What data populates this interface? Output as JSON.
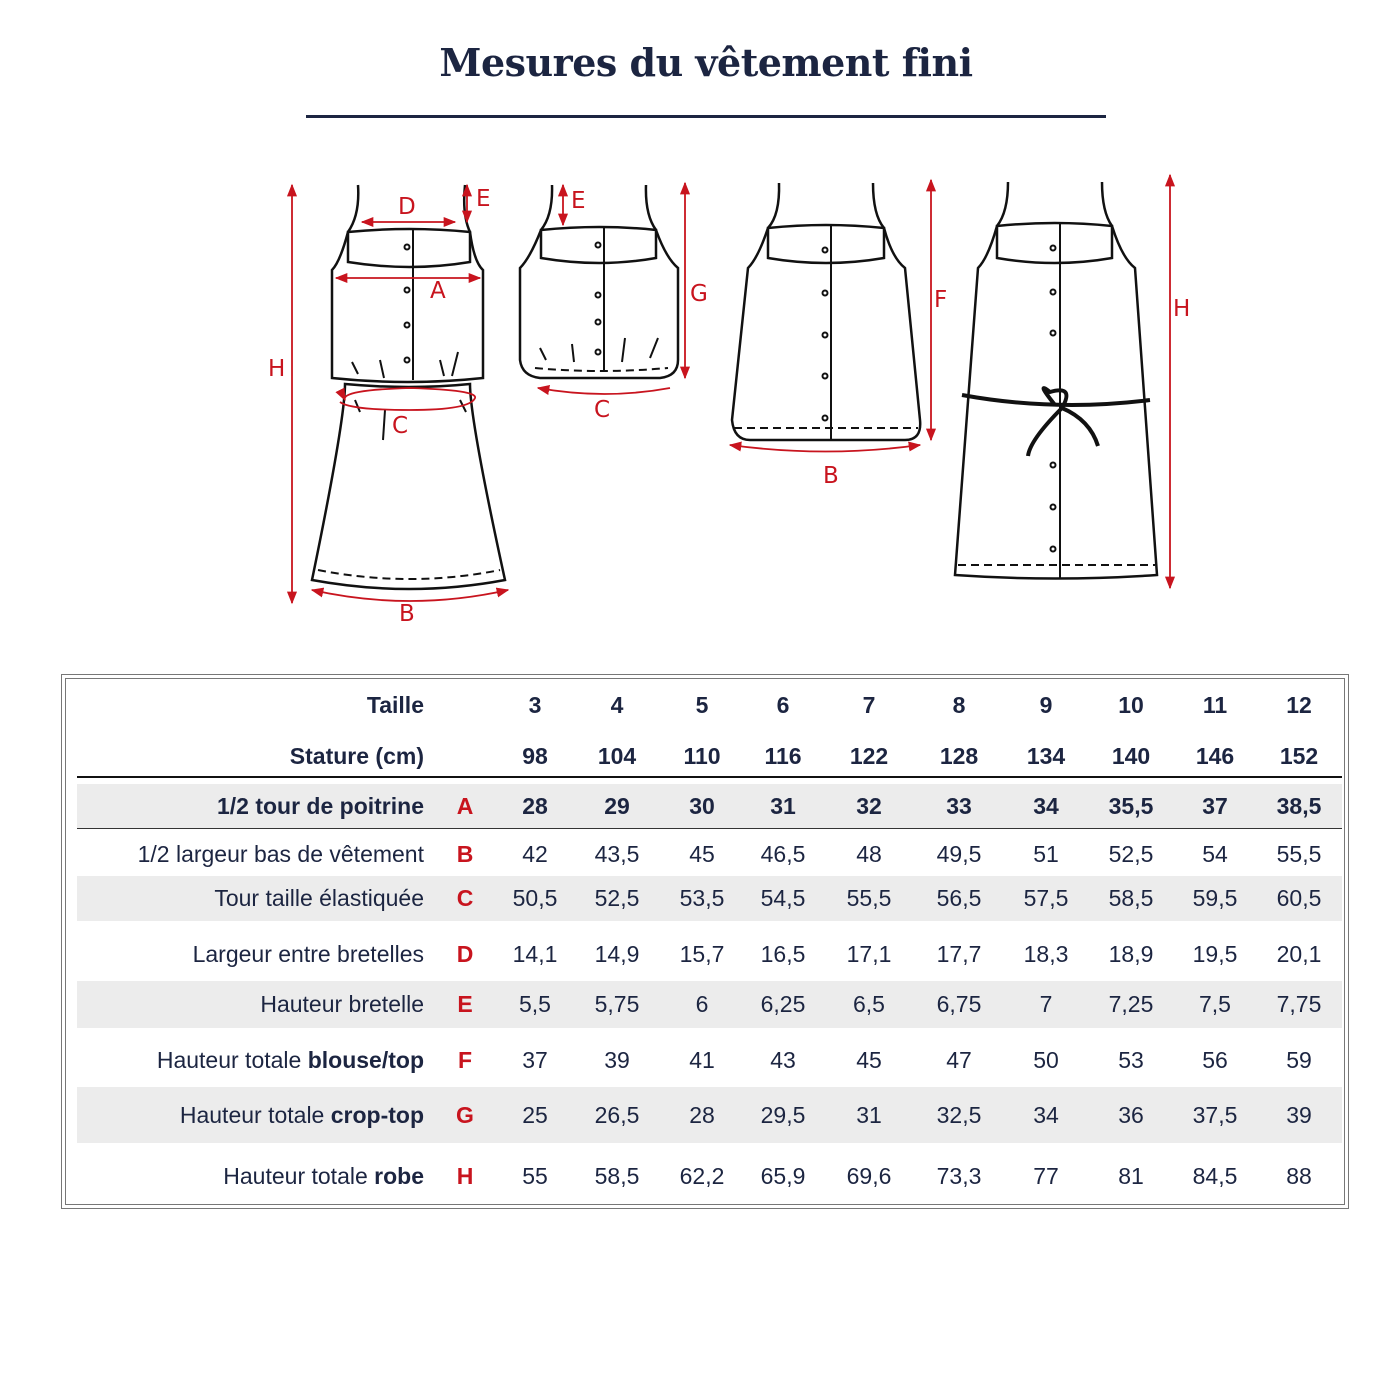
{
  "title": "Mesures du vêtement fini",
  "colors": {
    "navy": "#1c2541",
    "red": "#c8141e",
    "row_shade": "#ececec"
  },
  "diagram_labels": {
    "dress": [
      "D",
      "E",
      "A",
      "H",
      "C",
      "B"
    ],
    "crop_top": [
      "E",
      "G",
      "C"
    ],
    "blouse": [
      "F",
      "B"
    ],
    "belted_dress": [
      "H"
    ]
  },
  "table": {
    "header": {
      "size_label": "Taille",
      "sizes": [
        "3",
        "4",
        "5",
        "6",
        "7",
        "8",
        "9",
        "10",
        "11",
        "12"
      ],
      "stature_label": "Stature (cm)",
      "statures": [
        "98",
        "104",
        "110",
        "116",
        "122",
        "128",
        "134",
        "140",
        "146",
        "152"
      ]
    },
    "rows": [
      {
        "label": "1/2 tour de poitrine",
        "label_bold": "",
        "letter": "A",
        "values": [
          "28",
          "29",
          "30",
          "31",
          "32",
          "33",
          "34",
          "35,5",
          "37",
          "38,5"
        ]
      },
      {
        "label": "1/2 largeur bas de vêtement",
        "label_bold": "",
        "letter": "B",
        "values": [
          "42",
          "43,5",
          "45",
          "46,5",
          "48",
          "49,5",
          "51",
          "52,5",
          "54",
          "55,5"
        ]
      },
      {
        "label": "Tour taille élastiquée",
        "label_bold": "",
        "letter": "C",
        "values": [
          "50,5",
          "52,5",
          "53,5",
          "54,5",
          "55,5",
          "56,5",
          "57,5",
          "58,5",
          "59,5",
          "60,5"
        ]
      },
      {
        "label": "Largeur entre bretelles",
        "label_bold": "",
        "letter": "D",
        "values": [
          "14,1",
          "14,9",
          "15,7",
          "16,5",
          "17,1",
          "17,7",
          "18,3",
          "18,9",
          "19,5",
          "20,1"
        ]
      },
      {
        "label": "Hauteur bretelle",
        "label_bold": "",
        "letter": "E",
        "values": [
          "5,5",
          "5,75",
          "6",
          "6,25",
          "6,5",
          "6,75",
          "7",
          "7,25",
          "7,5",
          "7,75"
        ]
      },
      {
        "label": "Hauteur totale ",
        "label_bold": "blouse/top",
        "letter": "F",
        "values": [
          "37",
          "39",
          "41",
          "43",
          "45",
          "47",
          "50",
          "53",
          "56",
          "59"
        ]
      },
      {
        "label": "Hauteur totale ",
        "label_bold": "crop-top",
        "letter": "G",
        "values": [
          "25",
          "26,5",
          "28",
          "29,5",
          "31",
          "32,5",
          "34",
          "36",
          "37,5",
          "39"
        ]
      },
      {
        "label": "Hauteur totale ",
        "label_bold": "robe",
        "letter": "H",
        "values": [
          "55",
          "58,5",
          "62,2",
          "65,9",
          "69,6",
          "73,3",
          "77",
          "81",
          "84,5",
          "88"
        ]
      }
    ]
  }
}
